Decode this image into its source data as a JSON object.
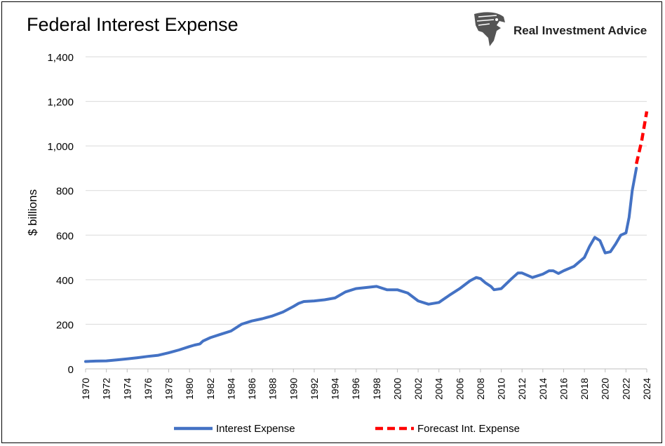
{
  "brand": {
    "name": "Real Investment Advice",
    "logo_icon": "eagle-head-icon"
  },
  "chart_data": {
    "type": "line",
    "title": "Federal Interest Expense",
    "ylabel": "$ billions",
    "xlabel": "",
    "ylim": [
      0,
      1400
    ],
    "xlim": [
      1970,
      2024
    ],
    "grid": true,
    "legend_position": "bottom",
    "y_ticks": [
      "0",
      "200",
      "400",
      "600",
      "800",
      "1,000",
      "1,200",
      "1,400"
    ],
    "x_ticks": [
      "1970",
      "1972",
      "1974",
      "1976",
      "1978",
      "1980",
      "1982",
      "1984",
      "1986",
      "1988",
      "1990",
      "1992",
      "1994",
      "1996",
      "1998",
      "2000",
      "2002",
      "2004",
      "2006",
      "2008",
      "2010",
      "2012",
      "2014",
      "2016",
      "2018",
      "2020",
      "2022",
      "2024"
    ],
    "series": [
      {
        "name": "Interest Expense",
        "color": "#4472C4",
        "style": "solid",
        "points": [
          [
            1970,
            33
          ],
          [
            1971,
            35
          ],
          [
            1972,
            36
          ],
          [
            1973,
            40
          ],
          [
            1974,
            45
          ],
          [
            1975,
            50
          ],
          [
            1976,
            56
          ],
          [
            1977,
            61
          ],
          [
            1978,
            72
          ],
          [
            1979,
            85
          ],
          [
            1980,
            100
          ],
          [
            1980.5,
            107
          ],
          [
            1981,
            112
          ],
          [
            1981.3,
            125
          ],
          [
            1982,
            140
          ],
          [
            1983,
            155
          ],
          [
            1984,
            170
          ],
          [
            1985,
            200
          ],
          [
            1986,
            215
          ],
          [
            1987,
            225
          ],
          [
            1988,
            238
          ],
          [
            1989,
            255
          ],
          [
            1990,
            280
          ],
          [
            1990.5,
            294
          ],
          [
            1991,
            302
          ],
          [
            1992,
            305
          ],
          [
            1993,
            310
          ],
          [
            1994,
            318
          ],
          [
            1995,
            345
          ],
          [
            1996,
            360
          ],
          [
            1997,
            365
          ],
          [
            1998,
            370
          ],
          [
            1999,
            355
          ],
          [
            2000,
            355
          ],
          [
            2001,
            340
          ],
          [
            2002,
            305
          ],
          [
            2003,
            290
          ],
          [
            2004,
            298
          ],
          [
            2005,
            330
          ],
          [
            2006,
            360
          ],
          [
            2007,
            395
          ],
          [
            2007.6,
            410
          ],
          [
            2008,
            405
          ],
          [
            2008.5,
            385
          ],
          [
            2009,
            370
          ],
          [
            2009.3,
            355
          ],
          [
            2010,
            360
          ],
          [
            2011,
            405
          ],
          [
            2011.6,
            430
          ],
          [
            2012,
            430
          ],
          [
            2013,
            410
          ],
          [
            2014,
            425
          ],
          [
            2014.6,
            440
          ],
          [
            2015,
            440
          ],
          [
            2015.5,
            428
          ],
          [
            2016,
            440
          ],
          [
            2017,
            460
          ],
          [
            2018,
            500
          ],
          [
            2018.5,
            550
          ],
          [
            2019,
            590
          ],
          [
            2019.5,
            575
          ],
          [
            2020,
            520
          ],
          [
            2020.5,
            525
          ],
          [
            2021,
            560
          ],
          [
            2021.5,
            600
          ],
          [
            2022,
            610
          ],
          [
            2022.3,
            680
          ],
          [
            2022.6,
            800
          ],
          [
            2023,
            900
          ]
        ]
      },
      {
        "name": "Forecast Int. Expense",
        "color": "#FF0000",
        "style": "dashed",
        "points": [
          [
            2023,
            920
          ],
          [
            2023.5,
            1020
          ],
          [
            2024,
            1155
          ]
        ]
      }
    ]
  }
}
